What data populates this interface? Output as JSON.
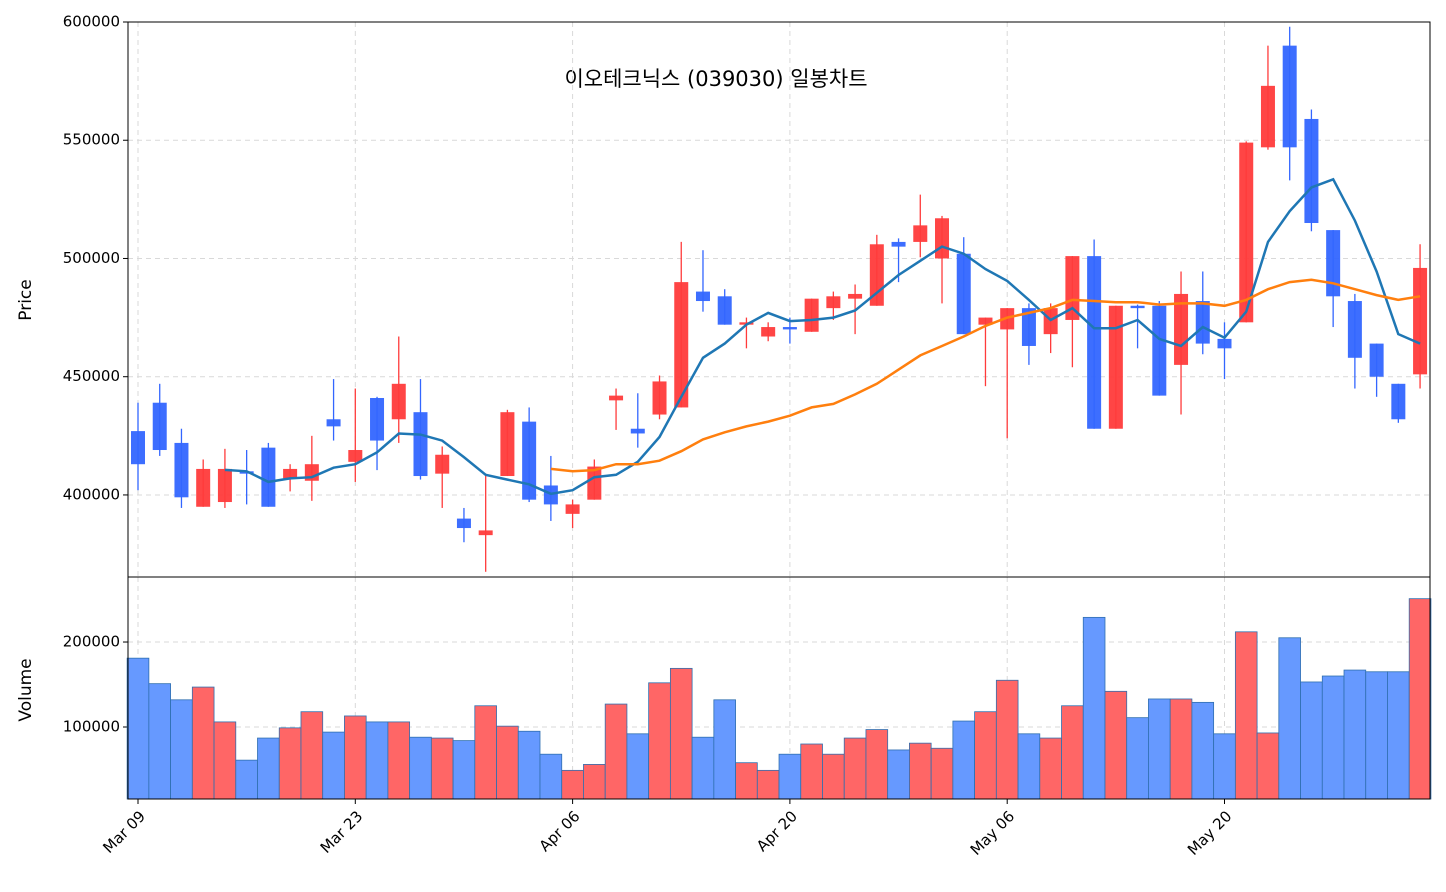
{
  "chart_data": [
    {
      "type": "candlestick",
      "title": "이오테크닉스 (039030) 일봉차트",
      "ylabel": "Price",
      "categories": [
        "Mar 09",
        null,
        null,
        null,
        null,
        null,
        null,
        null,
        null,
        null,
        "Mar 23",
        null,
        null,
        null,
        null,
        null,
        null,
        null,
        null,
        null,
        "Apr 06",
        null,
        null,
        null,
        null,
        null,
        null,
        null,
        null,
        null,
        "Apr 20",
        null,
        null,
        null,
        null,
        null,
        null,
        null,
        null,
        null,
        "May 06",
        null,
        null,
        null,
        null,
        null,
        null,
        null,
        null,
        null,
        "May 20",
        null,
        null,
        null,
        null,
        null,
        null,
        null,
        null,
        null
      ],
      "open": [
        427000,
        439000,
        422000,
        395000,
        397000,
        410000,
        420000,
        407000,
        406000,
        432000,
        414000,
        441000,
        432000,
        435000,
        409000,
        390000,
        383000,
        408000,
        431000,
        404000,
        392000,
        398000,
        440000,
        428000,
        434000,
        437000,
        486000,
        484000,
        472000,
        467000,
        471000,
        469000,
        479000,
        483000,
        480000,
        507000,
        507000,
        500000,
        502000,
        472000,
        470000,
        479000,
        468000,
        474000,
        501000,
        428000,
        480000,
        480000,
        455000,
        482000,
        466000,
        473000,
        547000,
        590000,
        559000,
        512000,
        482000,
        464000,
        447000,
        451000
      ],
      "high": [
        439000,
        447000,
        428000,
        415000,
        419500,
        419000,
        422000,
        413000,
        425000,
        449000,
        445000,
        441500,
        467000,
        449000,
        420500,
        394500,
        409000,
        436000,
        437000,
        416500,
        398000,
        415000,
        445000,
        443000,
        450500,
        507000,
        503500,
        487000,
        475000,
        473000,
        475000,
        483000,
        486000,
        489000,
        510000,
        508500,
        527000,
        518000,
        509000,
        475000,
        479000,
        481000,
        481000,
        501000,
        508000,
        480000,
        480500,
        482000,
        494500,
        494500,
        473000,
        549500,
        590000,
        598000,
        563000,
        512000,
        485000,
        464000,
        447000,
        506000
      ],
      "low": [
        402000,
        416500,
        394500,
        395000,
        394500,
        396000,
        395000,
        401500,
        397500,
        423000,
        405500,
        410500,
        422000,
        406500,
        394500,
        380000,
        367500,
        408000,
        397000,
        389000,
        386000,
        398000,
        427500,
        420000,
        432000,
        437000,
        477500,
        472000,
        462000,
        465000,
        464000,
        469000,
        474000,
        468000,
        480000,
        490000,
        500500,
        481000,
        468000,
        446000,
        424000,
        455000,
        460000,
        454000,
        428000,
        428000,
        462000,
        442000,
        434000,
        459500,
        449000,
        473000,
        546000,
        533000,
        511500,
        471000,
        445000,
        441500,
        430500,
        445000
      ],
      "close": [
        413000,
        419000,
        399000,
        411000,
        411000,
        409000,
        395000,
        411000,
        413000,
        429000,
        419000,
        423000,
        447000,
        408000,
        417000,
        386000,
        385000,
        435000,
        398000,
        396000,
        396000,
        412000,
        442000,
        426000,
        448000,
        490000,
        482000,
        472000,
        473000,
        471000,
        470000,
        483000,
        484000,
        485000,
        506000,
        505000,
        514000,
        517000,
        468000,
        475000,
        479000,
        463000,
        479000,
        501000,
        428000,
        480000,
        479000,
        442000,
        485000,
        464000,
        462000,
        549000,
        573000,
        547000,
        515000,
        484000,
        458000,
        450000,
        432000,
        496000
      ],
      "up_color": "#ff3b3b",
      "down_color": "#3366ff",
      "lines": [
        {
          "color": "#1f77b4",
          "values": [
            null,
            null,
            null,
            null,
            410600,
            410000,
            405500,
            407000,
            407500,
            411500,
            413000,
            418000,
            426000,
            425500,
            423000,
            416000,
            408500,
            406500,
            404500,
            400500,
            402000,
            407500,
            408500,
            414000,
            424500,
            441500,
            458000,
            464000,
            472000,
            477000,
            473500,
            474000,
            475000,
            478000,
            485500,
            493000,
            499000,
            505000,
            502000,
            495500,
            490500,
            482500,
            474000,
            479000,
            470500,
            470500,
            474000,
            466000,
            463000,
            471000,
            466500,
            477500,
            507000,
            520000,
            530000,
            533500,
            516000,
            494500,
            468000,
            464000
          ]
        },
        {
          "color": "#ff7f0e",
          "values": [
            null,
            null,
            null,
            null,
            null,
            null,
            null,
            null,
            null,
            null,
            null,
            null,
            null,
            null,
            null,
            null,
            null,
            null,
            null,
            411000,
            410000,
            410500,
            413000,
            413000,
            414500,
            418500,
            423500,
            426500,
            429000,
            431000,
            433500,
            437000,
            438500,
            442500,
            447000,
            453000,
            459000,
            463000,
            467000,
            471500,
            475000,
            477000,
            479000,
            482500,
            482000,
            481500,
            481500,
            480500,
            481000,
            481000,
            480000,
            482500,
            487000,
            490000,
            491000,
            489500,
            487000,
            484500,
            482500,
            484000
          ]
        }
      ],
      "ylim": [
        365300,
        600000
      ],
      "yticks": [
        400000,
        450000,
        500000,
        550000,
        600000
      ],
      "grid": true
    },
    {
      "type": "bar",
      "ylabel": "Volume",
      "values": [
        181000,
        151000,
        132000,
        147000,
        106000,
        61000,
        87000,
        99000,
        118000,
        94000,
        113000,
        106000,
        106000,
        88000,
        87000,
        84000,
        125000,
        101000,
        95000,
        68000,
        49000,
        56000,
        127000,
        92000,
        152000,
        169000,
        88000,
        132000,
        58000,
        49000,
        68000,
        80000,
        68000,
        87000,
        97000,
        73000,
        81000,
        75000,
        107000,
        118000,
        155000,
        92000,
        87000,
        125000,
        229000,
        142000,
        111000,
        133000,
        133000,
        129000,
        92000,
        212000,
        93000,
        205000,
        153000,
        160000,
        167000,
        165000,
        165000,
        251000
      ],
      "up_color": "#ff6666",
      "down_color": "#6699ff",
      "edge_color": "#2f6fb0",
      "ylim": [
        15300,
        276500
      ],
      "yticks": [
        100000,
        200000
      ],
      "grid": true
    }
  ]
}
